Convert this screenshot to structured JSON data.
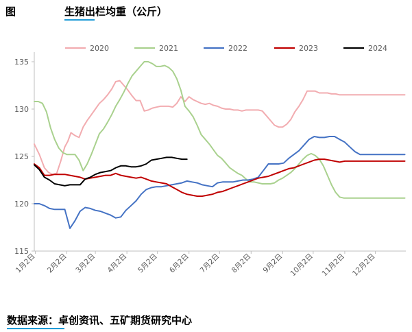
{
  "header": {
    "fig_label": "图",
    "title": "生猪出栏均重（公斤）"
  },
  "source": {
    "text": "数据来源：卓创资讯、五矿期货研究中心"
  },
  "chart_data": {
    "type": "line",
    "title": "生猪出栏均重（公斤）",
    "xlabel": "",
    "ylabel": "",
    "ylim": [
      115,
      135
    ],
    "yticks": [
      115,
      120,
      125,
      130,
      135
    ],
    "xticks": [
      "1月2日",
      "2月2日",
      "3月2日",
      "4月2日",
      "5月2日",
      "6月2日",
      "7月2日",
      "8月2日",
      "9月2日",
      "10月2日",
      "11月2日",
      "12月2日"
    ],
    "x_range_days": [
      0,
      365
    ],
    "grid": false,
    "legend_position": "top",
    "series": [
      {
        "name": "2020",
        "color": "#f2acb0",
        "x": [
          0,
          5,
          10,
          14,
          18,
          22,
          26,
          30,
          33,
          36,
          40,
          44,
          48,
          52,
          56,
          60,
          64,
          68,
          72,
          76,
          80,
          84,
          88,
          92,
          96,
          100,
          104,
          108,
          112,
          116,
          120,
          124,
          128,
          132,
          136,
          140,
          144,
          148,
          152,
          156,
          160,
          164,
          168,
          172,
          176,
          180,
          184,
          188,
          192,
          196,
          200,
          204,
          208,
          212,
          216,
          220,
          224,
          228,
          232,
          236,
          240,
          244,
          248,
          252,
          256,
          260,
          264,
          268,
          272,
          276,
          280,
          284,
          288,
          292,
          296,
          300,
          304,
          308,
          312,
          316,
          320,
          324,
          328,
          332,
          336,
          340,
          344,
          348,
          352,
          356,
          360,
          364
        ],
        "values": [
          126.3,
          125.2,
          123.8,
          123.3,
          123.1,
          123.2,
          124.5,
          126.0,
          126.6,
          127.5,
          127.2,
          127.0,
          128.1,
          128.8,
          129.4,
          130.0,
          130.6,
          131.0,
          131.5,
          132.1,
          132.9,
          133.0,
          132.5,
          132.0,
          131.4,
          130.9,
          130.9,
          129.8,
          129.9,
          130.1,
          130.2,
          130.3,
          130.3,
          130.3,
          130.2,
          130.6,
          131.3,
          130.8,
          131.3,
          131.0,
          130.8,
          130.6,
          130.5,
          130.6,
          130.4,
          130.3,
          130.1,
          130.0,
          130.0,
          129.9,
          129.9,
          129.8,
          129.9,
          129.9,
          129.9,
          129.9,
          129.8,
          129.3,
          128.8,
          128.3,
          128.1,
          128.1,
          128.4,
          128.9,
          129.7,
          130.3,
          131.0,
          131.9,
          131.9,
          131.9,
          131.7,
          131.7,
          131.7,
          131.6,
          131.6,
          131.5,
          131.5,
          131.5,
          131.5,
          131.5,
          131.5,
          131.5,
          131.5,
          131.5,
          131.5,
          131.5,
          131.5,
          131.5,
          131.5,
          131.5,
          131.5,
          131.5
        ]
      },
      {
        "name": "2021",
        "color": "#a9d18e",
        "x": [
          0,
          4,
          8,
          12,
          16,
          20,
          24,
          28,
          32,
          36,
          40,
          44,
          48,
          52,
          56,
          60,
          64,
          68,
          72,
          76,
          80,
          84,
          88,
          92,
          96,
          100,
          104,
          108,
          112,
          116,
          120,
          124,
          128,
          132,
          136,
          140,
          144,
          148,
          152,
          156,
          160,
          164,
          168,
          172,
          176,
          180,
          184,
          188,
          192,
          196,
          200,
          204,
          208,
          212,
          216,
          220,
          224,
          228,
          232,
          236,
          240,
          244,
          248,
          252,
          256,
          260,
          264,
          268,
          272,
          276,
          280,
          284,
          288,
          292,
          296,
          300,
          304,
          308,
          312,
          316,
          320,
          324,
          328,
          332,
          336,
          340,
          344,
          348,
          352,
          356,
          360,
          364
        ],
        "values": [
          130.8,
          130.8,
          130.6,
          129.7,
          128.0,
          126.8,
          125.9,
          125.4,
          125.2,
          125.2,
          125.2,
          124.6,
          123.5,
          124.2,
          125.2,
          126.3,
          127.4,
          127.9,
          128.6,
          129.4,
          130.3,
          131.0,
          131.8,
          132.7,
          133.5,
          134.0,
          134.5,
          135.0,
          135.0,
          134.8,
          134.5,
          134.5,
          134.6,
          134.4,
          134.0,
          133.2,
          132.0,
          130.3,
          129.8,
          129.2,
          128.3,
          127.3,
          126.8,
          126.3,
          125.7,
          125.1,
          124.8,
          124.3,
          123.8,
          123.5,
          123.2,
          123.0,
          122.6,
          122.3,
          122.3,
          122.2,
          122.1,
          122.1,
          122.1,
          122.2,
          122.5,
          122.7,
          123.0,
          123.3,
          123.7,
          124.2,
          124.7,
          125.1,
          125.3,
          125.1,
          124.7,
          124.0,
          123.0,
          122.0,
          121.2,
          120.7,
          120.6,
          120.6,
          120.6,
          120.6,
          120.6,
          120.6,
          120.6,
          120.6,
          120.6,
          120.6,
          120.6,
          120.6,
          120.6,
          120.6,
          120.6,
          120.6
        ]
      },
      {
        "name": "2022",
        "color": "#4472c4",
        "x": [
          0,
          5,
          10,
          15,
          20,
          25,
          30,
          35,
          40,
          45,
          50,
          55,
          60,
          65,
          70,
          75,
          80,
          85,
          90,
          95,
          100,
          105,
          110,
          115,
          120,
          125,
          130,
          135,
          140,
          145,
          150,
          155,
          160,
          165,
          170,
          175,
          180,
          185,
          190,
          195,
          200,
          205,
          210,
          215,
          220,
          225,
          230,
          235,
          240,
          245,
          250,
          255,
          260,
          265,
          270,
          275,
          280,
          285,
          290,
          295,
          300,
          305,
          310,
          315,
          320,
          325,
          330,
          335,
          340,
          345,
          350,
          355,
          360,
          364
        ],
        "values": [
          120.0,
          120.0,
          119.8,
          119.5,
          119.4,
          119.4,
          119.4,
          117.4,
          118.2,
          119.2,
          119.6,
          119.5,
          119.3,
          119.2,
          119.0,
          118.8,
          118.5,
          118.6,
          119.3,
          119.8,
          120.3,
          121.0,
          121.5,
          121.7,
          121.8,
          121.8,
          121.9,
          122.0,
          122.1,
          122.2,
          122.4,
          122.3,
          122.2,
          122.0,
          121.9,
          121.8,
          122.2,
          122.3,
          122.3,
          122.3,
          122.4,
          122.5,
          122.5,
          122.6,
          122.8,
          123.5,
          124.2,
          124.2,
          124.2,
          124.3,
          124.8,
          125.2,
          125.6,
          126.2,
          126.8,
          127.1,
          127.0,
          127.0,
          127.1,
          127.1,
          126.8,
          126.5,
          126.0,
          125.5,
          125.2,
          125.2,
          125.2,
          125.2,
          125.2,
          125.2,
          125.2,
          125.2,
          125.2,
          125.2
        ]
      },
      {
        "name": "2023",
        "color": "#c00000",
        "x": [
          0,
          5,
          10,
          15,
          20,
          25,
          30,
          35,
          40,
          45,
          50,
          55,
          60,
          65,
          70,
          75,
          80,
          85,
          90,
          95,
          100,
          105,
          110,
          115,
          120,
          125,
          130,
          135,
          140,
          145,
          150,
          155,
          160,
          165,
          170,
          175,
          180,
          185,
          190,
          195,
          200,
          205,
          210,
          215,
          220,
          225,
          230,
          235,
          240,
          245,
          250,
          255,
          260,
          265,
          270,
          275,
          280,
          285,
          290,
          295,
          300,
          305,
          310,
          315,
          320,
          325,
          330,
          335,
          340,
          345,
          350,
          355,
          360,
          364
        ],
        "values": [
          124.2,
          123.8,
          123.0,
          123.0,
          123.1,
          123.1,
          123.1,
          123.0,
          122.9,
          122.8,
          122.6,
          122.7,
          122.8,
          122.9,
          123.0,
          123.0,
          123.2,
          123.0,
          122.9,
          122.8,
          122.7,
          122.8,
          122.6,
          122.4,
          122.3,
          122.2,
          122.1,
          121.8,
          121.5,
          121.2,
          121.0,
          120.9,
          120.8,
          120.8,
          120.9,
          121.0,
          121.2,
          121.3,
          121.5,
          121.7,
          121.9,
          122.1,
          122.3,
          122.5,
          122.7,
          122.8,
          122.9,
          123.1,
          123.3,
          123.5,
          123.7,
          123.8,
          124.0,
          124.2,
          124.4,
          124.6,
          124.7,
          124.7,
          124.6,
          124.5,
          124.4,
          124.5,
          124.5,
          124.5,
          124.5,
          124.5,
          124.5,
          124.5,
          124.5,
          124.5,
          124.5,
          124.5,
          124.5,
          124.5
        ]
      },
      {
        "name": "2024",
        "color": "#000000",
        "x": [
          0,
          5,
          10,
          15,
          20,
          25,
          30,
          35,
          40,
          45,
          50,
          55,
          60,
          65,
          70,
          75,
          80,
          85,
          90,
          95,
          100,
          105,
          110,
          115,
          120,
          125,
          130,
          135,
          140,
          145,
          150,
          155,
          160,
          165,
          170,
          175,
          180,
          185,
          190,
          195,
          200,
          205,
          210,
          215,
          220,
          225,
          230,
          235,
          240,
          245,
          250,
          255,
          260,
          265,
          270,
          275,
          280,
          285,
          290,
          295,
          300,
          305,
          310,
          315,
          320,
          325,
          330,
          335,
          340,
          345,
          350,
          355,
          360,
          364
        ],
        "values": [
          124.1,
          123.6,
          122.8,
          122.5,
          122.1,
          122.0,
          121.9,
          122.0,
          122.0,
          122.0,
          122.6,
          122.8,
          123.1,
          123.3,
          123.4,
          123.5,
          123.8,
          124.0,
          124.0,
          123.9,
          123.9,
          124.0,
          124.2,
          124.6,
          124.7,
          124.8,
          124.9,
          124.9,
          124.8,
          124.7,
          124.7,
          124.7,
          124.7,
          124.7,
          124.7,
          124.7,
          124.7,
          124.7,
          124.7,
          124.7,
          124.7,
          124.7,
          124.7,
          124.7,
          124.7,
          124.7,
          124.7,
          124.7,
          124.7,
          124.7,
          124.7,
          124.7,
          124.7,
          124.7,
          124.7,
          124.7,
          124.7,
          124.7,
          124.7,
          124.7,
          124.7,
          124.7,
          124.7,
          124.7,
          124.7,
          124.7,
          124.7,
          124.7,
          124.7,
          124.7,
          124.7,
          124.7,
          124.7,
          124.7
        ],
        "x_end": 150
      }
    ]
  }
}
